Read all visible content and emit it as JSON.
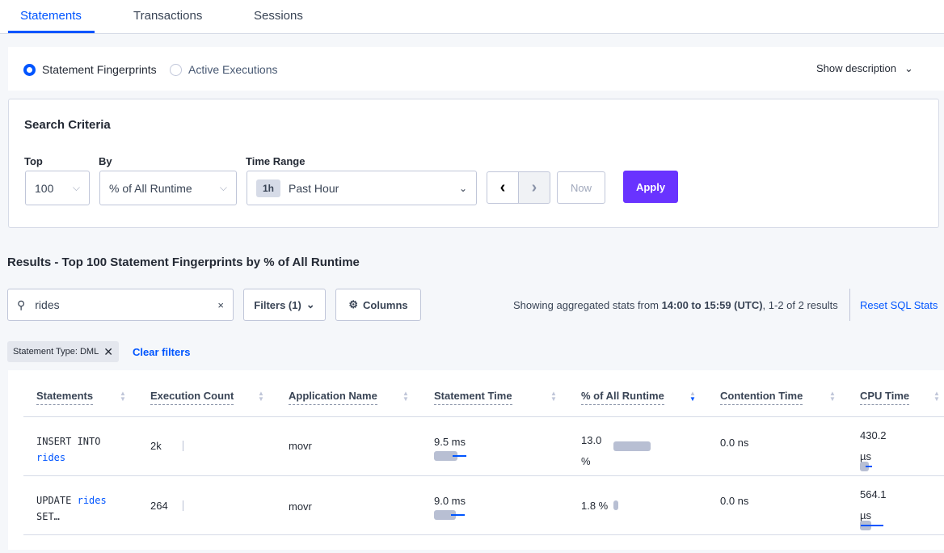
{
  "tabs": [
    {
      "label": "Statements",
      "active": true
    },
    {
      "label": "Transactions"
    },
    {
      "label": "Sessions"
    }
  ],
  "view_toggle": {
    "options": [
      "Statement Fingerprints",
      "Active Executions"
    ],
    "selected": "Statement Fingerprints",
    "show_description": "Show description"
  },
  "search_criteria": {
    "title": "Search Criteria",
    "top_label": "Top",
    "top_value": "100",
    "by_label": "By",
    "by_value": "% of All Runtime",
    "time_range_label": "Time Range",
    "time_badge": "1h",
    "time_value": "Past Hour",
    "now_label": "Now",
    "apply_label": "Apply"
  },
  "results": {
    "heading": "Results - Top 100 Statement Fingerprints by % of All Runtime",
    "search_value": "rides",
    "filters_label": "Filters (1)",
    "columns_label": "Columns",
    "summary_prefix": "Showing aggregated stats from ",
    "summary_range": "14:00 to 15:59 (UTC)",
    "summary_suffix": ", 1-2 of 2 results",
    "reset_label": "Reset SQL Stats",
    "filter_tag": "Statement Type: DML",
    "clear_filters": "Clear filters"
  },
  "colors": {
    "accent": "#0055ff",
    "apply": "#6933ff"
  },
  "table": {
    "columns": [
      "Statements",
      "Execution Count",
      "Application Name",
      "Statement Time",
      "% of All Runtime",
      "Contention Time",
      "CPU Time"
    ],
    "sorted_column": "% of All Runtime",
    "sort_direction": "descending",
    "rows": [
      {
        "stmt_a": "INSERT INTO",
        "stmt_b": "rides",
        "exec": "2k",
        "app": "movr",
        "stmt_time": "9.5 ms",
        "pct_a": "13.0",
        "pct_b": "%",
        "contention": "0.0 ns",
        "cpu_a": "430.2",
        "cpu_b": "µs"
      },
      {
        "stmt_a": "UPDATE",
        "stmt_b": "rides",
        "stmt_c": "SET…",
        "exec": "264",
        "app": "movr",
        "stmt_time": "9.0 ms",
        "pct": "1.8 %",
        "contention": "0.0 ns",
        "cpu_a": "564.1",
        "cpu_b": "µs"
      }
    ]
  }
}
